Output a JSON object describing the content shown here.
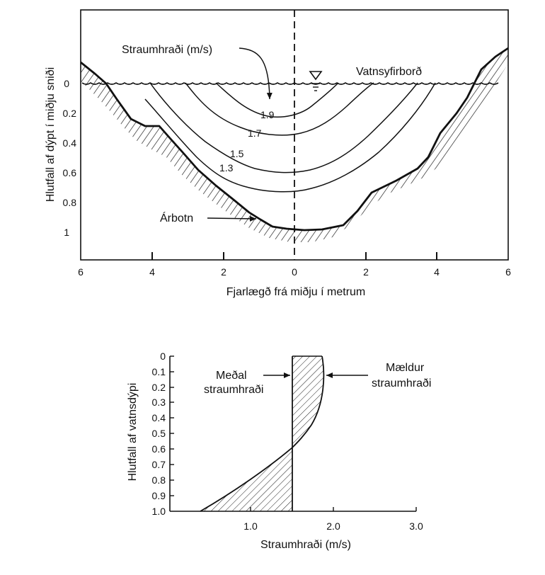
{
  "top_panel": {
    "y_axis_label": "Hlutfall af dýpt í miðju sniði",
    "x_axis_label": "Fjarlægð frá miðju í metrum",
    "y_ticks": [
      "0",
      "0.2",
      "0.4",
      "0.6",
      "0.8",
      "1"
    ],
    "x_ticks": [
      "6",
      "4",
      "2",
      "0",
      "2",
      "4",
      "6"
    ],
    "labels": {
      "velocity": "Straumhraði (m/s)",
      "water_surface": "Vatnsyfirborð",
      "bed": "Árbotn"
    },
    "contours": [
      "1.9",
      "1.7",
      "1.5",
      "1.3"
    ]
  },
  "bottom_panel": {
    "y_axis_label": "Hlutfall af vatnsdýpi",
    "x_axis_label": "Straumhraði (m/s)",
    "y_ticks": [
      "0",
      "0.1",
      "0.2",
      "0.3",
      "0.4",
      "0.5",
      "0.6",
      "0.7",
      "0.8",
      "0.9",
      "1.0"
    ],
    "x_ticks": [
      "1.0",
      "2.0",
      "3.0"
    ],
    "mean_label": [
      "Meðal",
      "straumhraði"
    ],
    "measured_label": [
      "Mældur",
      "straumhraði"
    ]
  }
}
